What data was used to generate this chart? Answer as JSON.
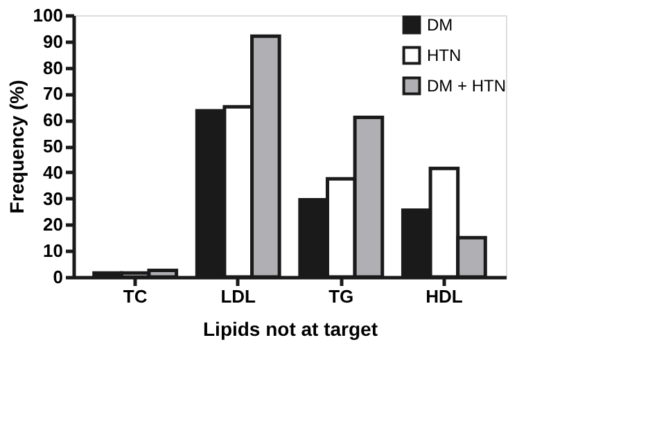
{
  "chart_data": {
    "type": "bar",
    "xlabel": "Lipids not at target",
    "ylabel": "Frequency (%)",
    "categories": [
      "TC",
      "LDL",
      "TG",
      "HDL"
    ],
    "series": [
      {
        "name": "DM",
        "color": "#1a1a1a",
        "values": [
          1.5,
          63.5,
          29.5,
          25.5
        ]
      },
      {
        "name": "HTN",
        "color": "#ffffff",
        "values": [
          1.5,
          65,
          37.5,
          41.5
        ]
      },
      {
        "name": "DM + HTN",
        "color": "#b0b0b4",
        "values": [
          2.5,
          92,
          61,
          15
        ]
      }
    ],
    "ylim": [
      0,
      100
    ],
    "yticks": [
      0,
      10,
      20,
      30,
      40,
      50,
      60,
      70,
      80,
      90,
      100
    ],
    "grid": false,
    "legend": "top right"
  }
}
